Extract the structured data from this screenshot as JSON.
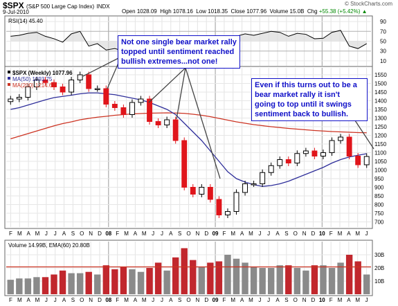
{
  "header": {
    "symbol": "$SPX",
    "description": "(S&P 500 Large Cap Index)",
    "exchange": "INDX",
    "date": "9-Jul-2010",
    "open_label": "Open",
    "open": "1028.09",
    "high_label": "High",
    "high": "1078.16",
    "low_label": "Low",
    "low": "1018.35",
    "close_label": "Close",
    "close": "1077.96",
    "volume_label": "Volume",
    "volume": "15.0B",
    "chg_label": "Chg",
    "chg": "+55.38 (+5.42%)",
    "chg_arrow": "▲",
    "watermark": "© StockCharts.com"
  },
  "rsi_panel": {
    "label": "RSI(14) 45.40",
    "ticks": [
      90,
      70,
      50,
      30,
      10
    ],
    "colors": {
      "line": "#000000",
      "fill": "#dcdcdc"
    }
  },
  "price_panel": {
    "legend": [
      {
        "label": "$SPX (Weekly) 1077.96",
        "color": "#000000"
      },
      {
        "label": "MA(50) 1093.75",
        "color": "#2e2e9a"
      },
      {
        "label": "MA(200) 1214.67",
        "color": "#cc3322"
      }
    ],
    "ticks": [
      1550,
      1500,
      1450,
      1400,
      1350,
      1300,
      1250,
      1200,
      1150,
      1100,
      1050,
      1000,
      950,
      900,
      850,
      800,
      750,
      700
    ],
    "colors": {
      "up": "#000000",
      "down": "#e0151b",
      "ma50": "#2e2e9a",
      "ma200": "#cc3322"
    }
  },
  "volume_panel": {
    "label": "Volume 14.99B, EMA(60) 20.80B",
    "ticks": [
      "30B",
      "20B",
      "10B"
    ],
    "colors": {
      "up": "#8a8a8a",
      "down": "#c1272d",
      "ema": "#cc3322"
    }
  },
  "x_axis": {
    "labels": [
      "F",
      "M",
      "A",
      "M",
      "J",
      "J",
      "A",
      "S",
      "O",
      "N",
      "D",
      "08",
      "F",
      "M",
      "A",
      "M",
      "J",
      "J",
      "A",
      "S",
      "O",
      "N",
      "D",
      "09",
      "F",
      "M",
      "A",
      "M",
      "J",
      "J",
      "A",
      "S",
      "O",
      "N",
      "D",
      "10",
      "F",
      "M",
      "A",
      "M",
      "J"
    ]
  },
  "annotations": {
    "left": [
      "Not one single bear market rally",
      "topped until sentiment reached",
      "bullish extremes...not one!"
    ],
    "right": [
      "Even if this turns out to be a",
      "bear market rally it isn't",
      "going to top until it swings",
      "sentiment back to bullish."
    ]
  },
  "chart_data": {
    "type": "candlestick",
    "title": "$SPX (S&P 500 Large Cap Index) INDX",
    "frequency": "Weekly",
    "x": [
      "2007-02",
      "2007-03",
      "2007-04",
      "2007-05",
      "2007-06",
      "2007-07",
      "2007-08",
      "2007-09",
      "2007-10",
      "2007-11",
      "2007-12",
      "2008-01",
      "2008-02",
      "2008-03",
      "2008-04",
      "2008-05",
      "2008-06",
      "2008-07",
      "2008-08",
      "2008-09",
      "2008-10",
      "2008-11",
      "2008-12",
      "2009-01",
      "2009-02",
      "2009-03",
      "2009-04",
      "2009-05",
      "2009-06",
      "2009-07",
      "2009-08",
      "2009-09",
      "2009-10",
      "2009-11",
      "2009-12",
      "2010-01",
      "2010-02",
      "2010-03",
      "2010-04",
      "2010-05",
      "2010-06",
      "2010-07"
    ],
    "close": [
      1410,
      1420,
      1480,
      1520,
      1505,
      1480,
      1450,
      1520,
      1550,
      1470,
      1470,
      1380,
      1360,
      1320,
      1390,
      1410,
      1280,
      1260,
      1290,
      1170,
      900,
      860,
      900,
      830,
      740,
      760,
      870,
      920,
      920,
      985,
      1025,
      1060,
      1040,
      1095,
      1110,
      1080,
      1100,
      1170,
      1190,
      1080,
      1030,
      1078
    ],
    "ma50": [
      1350,
      1360,
      1375,
      1390,
      1405,
      1418,
      1425,
      1432,
      1440,
      1445,
      1445,
      1440,
      1435,
      1425,
      1415,
      1405,
      1390,
      1370,
      1350,
      1320,
      1270,
      1220,
      1170,
      1110,
      1050,
      990,
      950,
      930,
      915,
      905,
      910,
      920,
      935,
      955,
      975,
      995,
      1015,
      1040,
      1060,
      1075,
      1085,
      1094
    ],
    "ma200": [
      1180,
      1195,
      1210,
      1225,
      1240,
      1255,
      1268,
      1278,
      1290,
      1298,
      1305,
      1310,
      1316,
      1320,
      1324,
      1326,
      1328,
      1329,
      1330,
      1329,
      1327,
      1322,
      1316,
      1308,
      1298,
      1288,
      1278,
      1270,
      1262,
      1256,
      1250,
      1245,
      1240,
      1236,
      1232,
      1228,
      1225,
      1222,
      1220,
      1218,
      1216,
      1215
    ],
    "rsi": [
      60,
      62,
      66,
      68,
      60,
      55,
      48,
      65,
      70,
      40,
      45,
      32,
      35,
      30,
      55,
      58,
      35,
      38,
      42,
      28,
      12,
      25,
      40,
      30,
      18,
      35,
      60,
      65,
      62,
      66,
      70,
      68,
      60,
      66,
      64,
      55,
      56,
      68,
      72,
      40,
      35,
      45
    ],
    "volume_billions": [
      11,
      12,
      12,
      13,
      13,
      15,
      18,
      16,
      16,
      17,
      15,
      22,
      19,
      21,
      19,
      17,
      20,
      24,
      18,
      28,
      35,
      26,
      21,
      24,
      25,
      30,
      27,
      24,
      21,
      20,
      20,
      22,
      22,
      20,
      18,
      22,
      22,
      20,
      24,
      30,
      25,
      15
    ],
    "ema60_volume_billions": 20.8,
    "y_ticks": [
      700,
      750,
      800,
      850,
      900,
      950,
      1000,
      1050,
      1100,
      1150,
      1200,
      1250,
      1300,
      1350,
      1400,
      1450,
      1500,
      1550
    ],
    "ylim": [
      670,
      1590
    ],
    "rsi_ylim": [
      0,
      100
    ],
    "volume_ylim": [
      0,
      40
    ]
  }
}
